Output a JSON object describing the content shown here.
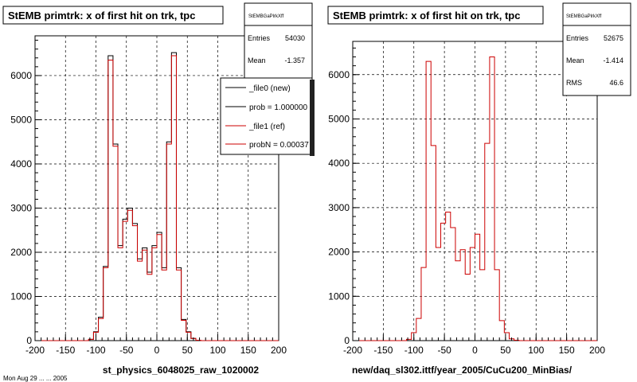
{
  "footer_text": "Mon Aug 29 ... ... 2005",
  "left_panel": {
    "title": "StEMB primtrk: x of first hit on trk, tpc",
    "stats_title": "StEMBGaPlrkXff",
    "stats": [
      {
        "label": "Entries",
        "value": "54030"
      },
      {
        "label": "Mean",
        "value": "-1.357"
      }
    ],
    "legend": [
      {
        "label": "_file0 (new)",
        "color": "#000000"
      },
      {
        "label": "prob = 1.000000",
        "color": "#000000"
      },
      {
        "label": "_file1 (ref)",
        "color": "#cc0000"
      },
      {
        "label": "probN = 0.00037",
        "color": "#cc0000"
      }
    ],
    "xlabel": "st_physics_6048025_raw_1020002"
  },
  "right_panel": {
    "title": "StEMB primtrk: x of first hit on trk, tpc",
    "stats_title": "StEMBGaPlrkXff",
    "stats": [
      {
        "label": "Entries",
        "value": "52675"
      },
      {
        "label": "Mean",
        "value": "-1.414"
      },
      {
        "label": "RMS",
        "value": "46.6"
      }
    ],
    "xlabel": "new/daq_sl302.ittf/year_2005/CuCu200_MinBias/"
  },
  "chart_data": [
    {
      "type": "histogram",
      "title": "StEMB primtrk: x of first hit on trk, tpc",
      "xlabel": "st_physics_6048025_raw_1020002",
      "xlim": [
        -200,
        200
      ],
      "ylim": [
        0,
        6900
      ],
      "xticks": [
        -200,
        -150,
        -100,
        -50,
        0,
        50,
        100,
        150,
        200
      ],
      "yticks": [
        0,
        1000,
        2000,
        3000,
        4000,
        5000,
        6000
      ],
      "grid": true,
      "bin_width": 8,
      "bin_edges_start": -200,
      "series": [
        {
          "name": "_file0 (new)",
          "color": "#000000",
          "values": [
            0,
            0,
            0,
            0,
            0,
            0,
            0,
            0,
            0,
            0,
            0,
            30,
            200,
            530,
            1680,
            6450,
            4450,
            2150,
            2750,
            3000,
            2650,
            1850,
            2100,
            1550,
            2150,
            2450,
            1650,
            4500,
            6520,
            1650,
            480,
            200,
            50,
            10,
            0,
            0,
            0,
            0,
            0,
            0,
            0,
            0,
            0,
            0,
            0,
            0,
            0,
            0,
            0,
            0
          ]
        },
        {
          "name": "_file1 (ref)",
          "color": "#cc0000",
          "values": [
            0,
            0,
            0,
            0,
            0,
            0,
            0,
            0,
            0,
            0,
            0,
            30,
            190,
            500,
            1650,
            6350,
            4400,
            2100,
            2700,
            2950,
            2600,
            1800,
            2050,
            1500,
            2100,
            2400,
            1600,
            4450,
            6450,
            1600,
            460,
            190,
            50,
            10,
            0,
            0,
            0,
            0,
            0,
            0,
            0,
            0,
            0,
            0,
            0,
            0,
            0,
            0,
            0,
            0
          ]
        }
      ]
    },
    {
      "type": "histogram",
      "title": "StEMB primtrk: x of first hit on trk, tpc",
      "xlabel": "new/daq_sl302.ittf/year_2005/CuCu200_MinBias/",
      "xlim": [
        -200,
        200
      ],
      "ylim": [
        0,
        6750
      ],
      "xticks": [
        -200,
        -150,
        -100,
        -50,
        0,
        50,
        100,
        150,
        200
      ],
      "yticks": [
        0,
        1000,
        2000,
        3000,
        4000,
        5000,
        6000
      ],
      "grid": true,
      "bin_width": 8,
      "bin_edges_start": -200,
      "series": [
        {
          "color": "#cc0000",
          "values": [
            0,
            0,
            0,
            0,
            0,
            0,
            0,
            0,
            0,
            0,
            0,
            30,
            180,
            500,
            1650,
            6300,
            4400,
            2100,
            2650,
            2900,
            2550,
            1800,
            2050,
            1500,
            2100,
            2400,
            1600,
            4450,
            6400,
            1600,
            450,
            180,
            40,
            10,
            0,
            0,
            0,
            0,
            0,
            0,
            0,
            0,
            0,
            0,
            0,
            0,
            0,
            0,
            0,
            0
          ]
        }
      ]
    }
  ]
}
